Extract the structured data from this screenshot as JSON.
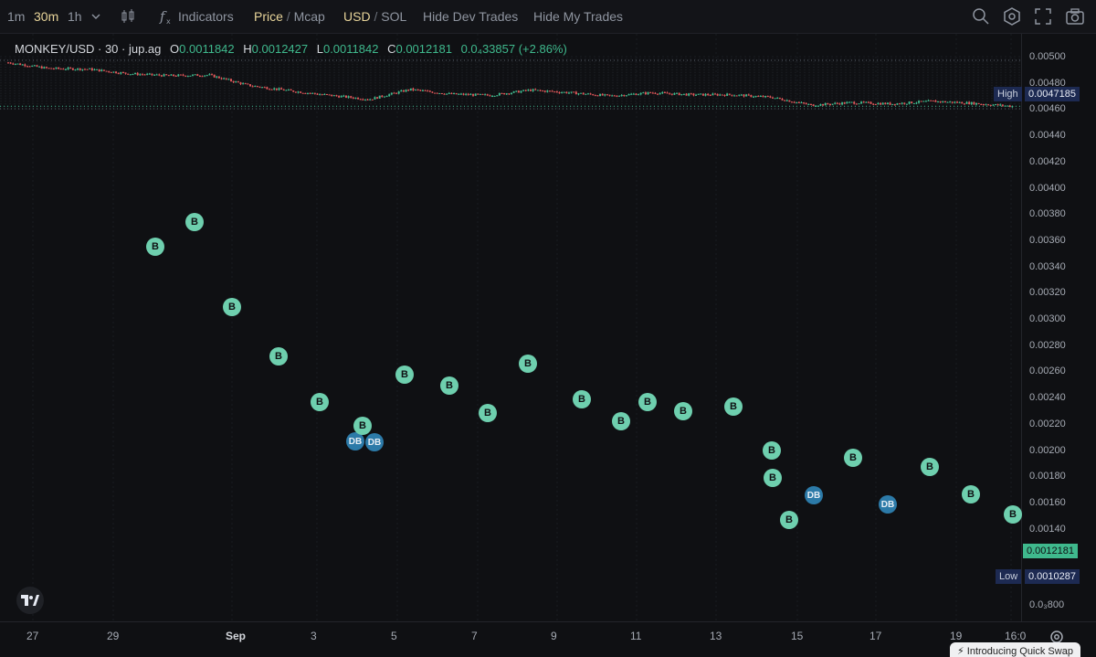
{
  "toolbar": {
    "intervals": [
      "1m",
      "30m",
      "1h"
    ],
    "active_interval": "30m",
    "indicators_label": "Indicators",
    "price_label": "Price",
    "mcap_label": "Mcap",
    "usd_label": "USD",
    "sol_label": "SOL",
    "hide_dev_trades": "Hide Dev Trades",
    "hide_my_trades": "Hide My Trades",
    "separator": "/"
  },
  "legend": {
    "symbol": "MONKEY/USD · 30 · jup.ag",
    "o_label": "O",
    "o_value": "0.0011842",
    "h_label": "H",
    "h_value": "0.0012427",
    "l_label": "L",
    "l_value": "0.0011842",
    "c_label": "C",
    "c_value": "0.0012181",
    "change": "0.0₄33857 (+2.86%)"
  },
  "price_axis": {
    "ticks": [
      "0.00500",
      "0.00480",
      "0.00460",
      "0.00440",
      "0.00420",
      "0.00400",
      "0.00380",
      "0.00360",
      "0.00340",
      "0.00320",
      "0.00300",
      "0.00280",
      "0.00260",
      "0.00240",
      "0.00220",
      "0.00200",
      "0.00180",
      "0.00160",
      "0.00140",
      "0.0₃800"
    ],
    "high_label": "High",
    "high_value": "0.0047185",
    "low_label": "Low",
    "low_value": "0.0010287",
    "current_value": "0.0012181"
  },
  "time_axis": {
    "labels": [
      "27",
      "29",
      "Sep",
      "3",
      "5",
      "7",
      "9",
      "11",
      "13",
      "15",
      "17",
      "19",
      "16:0"
    ]
  },
  "markers": [
    "B",
    "B",
    "B",
    "B",
    "B",
    "DB",
    "B",
    "DB",
    "B",
    "B",
    "B",
    "B",
    "B",
    "B",
    "B",
    "B",
    "B",
    "B",
    "B",
    "DB",
    "B",
    "DB",
    "B",
    "B",
    "B",
    "B",
    "B",
    "B"
  ],
  "promo_text": "⚡ Introducing Quick Swap",
  "colors": {
    "up": "#3fb98d",
    "down": "#e0575a",
    "buy_marker": "#6ecfae",
    "dev_buy_marker": "#2c7aa8",
    "background": "#0f1013"
  },
  "chart_data": {
    "type": "line",
    "x": [
      "26",
      "27",
      "28",
      "29",
      "30",
      "31",
      "Sep",
      "2",
      "3",
      "4",
      "5",
      "6",
      "7",
      "8",
      "9",
      "10",
      "11",
      "12",
      "13",
      "14",
      "15",
      "16",
      "17",
      "18",
      "19",
      "20"
    ],
    "values": [
      0.00455,
      0.0041,
      0.00405,
      0.0037,
      0.00355,
      0.0036,
      0.0028,
      0.0024,
      0.00205,
      0.00175,
      0.0025,
      0.00215,
      0.00205,
      0.00245,
      0.00225,
      0.002,
      0.00225,
      0.0021,
      0.0021,
      0.0019,
      0.0013,
      0.0015,
      0.0014,
      0.0016,
      0.00145,
      0.00122
    ],
    "ylim": [
      0.0008,
      0.0051
    ],
    "high": 0.0047185,
    "low": 0.0010287,
    "last": 0.0012181
  }
}
